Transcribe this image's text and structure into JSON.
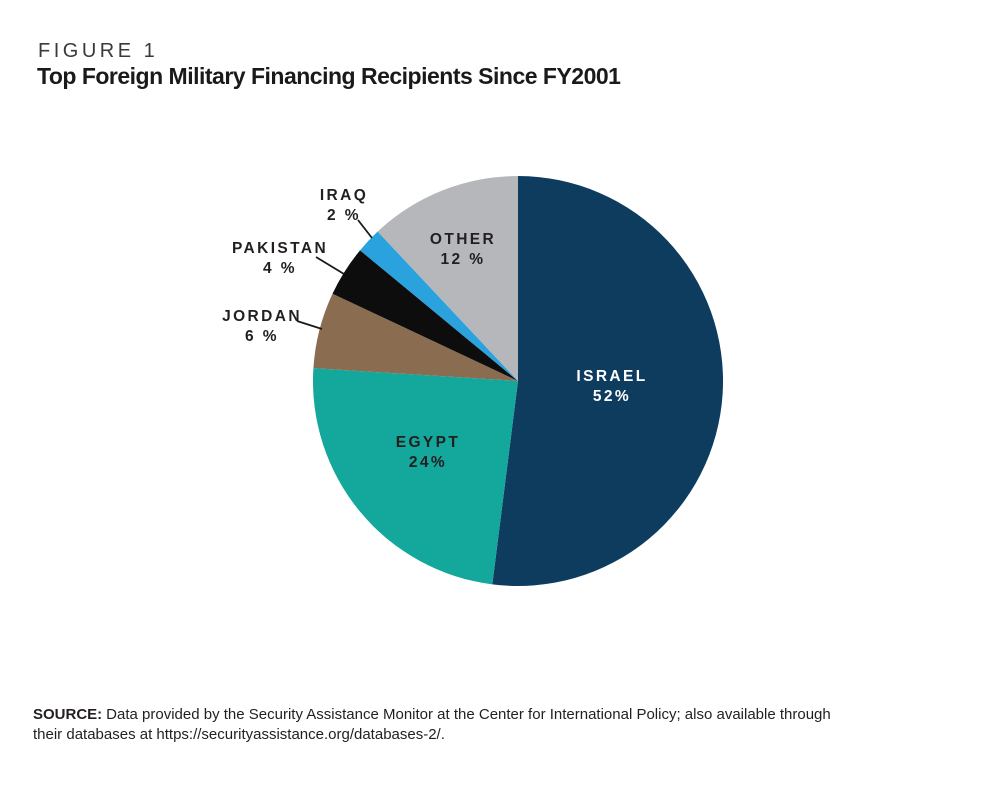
{
  "header": {
    "figure_label": "FIGURE 1",
    "title": "Top Foreign Military Financing Recipients Since FY2001"
  },
  "chart_data": {
    "type": "pie",
    "title": "Top Foreign Military Financing Recipients Since FY2001",
    "units": "percent of total",
    "start_angle_deg": 0,
    "direction": "clockwise",
    "slices": [
      {
        "label": "ISRAEL",
        "value": 52,
        "value_label": "52%",
        "color": "#0e3c5f",
        "label_placement": "inside",
        "label_color": "#ffffff"
      },
      {
        "label": "EGYPT",
        "value": 24,
        "value_label": "24%",
        "color": "#14a79b",
        "label_placement": "inside",
        "label_color": "#231f20"
      },
      {
        "label": "JORDAN",
        "value": 6,
        "value_label": "6 %",
        "color": "#8a6c50",
        "label_placement": "outside",
        "label_color": "#231f20"
      },
      {
        "label": "PAKISTAN",
        "value": 4,
        "value_label": "4 %",
        "color": "#0d0d0e",
        "label_placement": "outside",
        "label_color": "#231f20"
      },
      {
        "label": "IRAQ",
        "value": 2,
        "value_label": "2 %",
        "color": "#2aa2de",
        "label_placement": "outside",
        "label_color": "#231f20"
      },
      {
        "label": "OTHER",
        "value": 12,
        "value_label": "12 %",
        "color": "#b5b7ba",
        "label_placement": "inside",
        "label_color": "#231f20"
      }
    ]
  },
  "source": {
    "label": "SOURCE:",
    "line1": "Data provided by the Security Assistance Monitor at the Center for International Policy; also available through",
    "line2": "their databases at https://securityassistance.org/databases-2/."
  }
}
